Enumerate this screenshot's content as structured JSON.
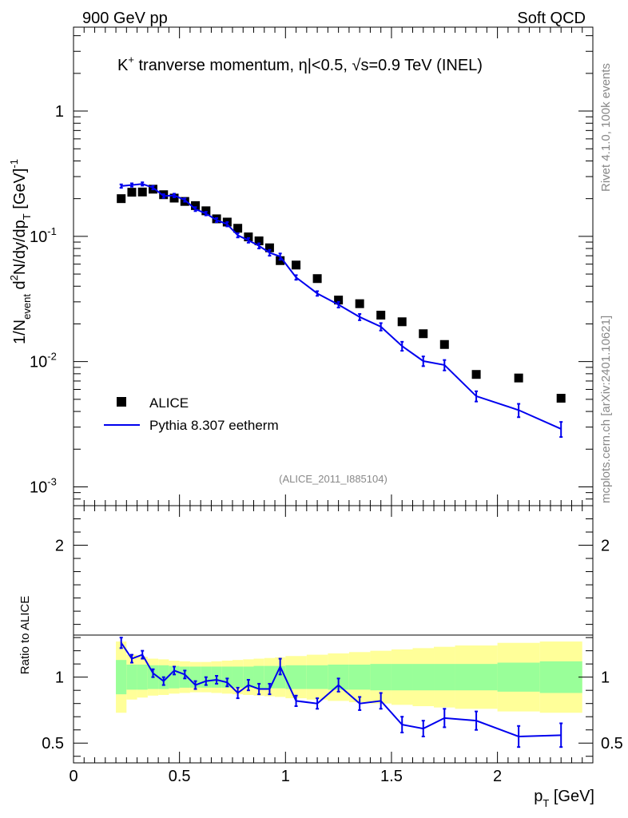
{
  "header": {
    "left": "900 GeV pp",
    "right": "Soft QCD"
  },
  "side_labels": {
    "top": "Rivet 4.1.0,  100k events",
    "bottom": "mcplots.cern.ch [arXiv:2401.10621]"
  },
  "watermark": "(ALICE_2011_I885104)",
  "title_parts": {
    "k": "K",
    "plus": "+",
    "mid": " tranverse momentum, ",
    "eta": "η",
    "abs_cut": "|<0.5, ",
    "sqrt": "√",
    "s_rest": "s=0.9 TeV (INEL)"
  },
  "ylabel_parts": {
    "a": "1/N",
    "event": "event",
    "b": " d",
    "two": "2",
    "c": "N/dy/dp",
    "t": "T",
    "d": " [GeV]",
    "minus_one": "-1"
  },
  "xlabel_parts": {
    "p": "p",
    "t": "T",
    "unit": " [GeV]"
  },
  "ratio_ylabel": "Ratio to ALICE",
  "colors": {
    "mc": "#0000ee",
    "data": "#000000",
    "band_inner": "#99ff99",
    "band_outer": "#ffff99"
  },
  "legend": {
    "data_label": "ALICE",
    "mc_label": "Pythia 8.307 eetherm"
  },
  "chart_data": {
    "type": "scatter",
    "title": "K+ tranverse momentum, |η|<0.5, √s=0.9 TeV (INEL)",
    "xlabel": "pT [GeV]",
    "ylabel": "1/Nevent d2N/dy/dpT [GeV]-1",
    "xlim": [
      0,
      2.45
    ],
    "main_ylim_log10": [
      -3.15,
      0.67
    ],
    "ratio_ylim": [
      0.35,
      2.3
    ],
    "x_tick_labels": [
      "0",
      "0.5",
      "1",
      "1.5",
      "2"
    ],
    "x_tick_values": [
      0,
      0.5,
      1,
      1.5,
      2
    ],
    "main_y_tick_labels": [
      {
        "base": "1",
        "exp": "",
        "log": 0
      },
      {
        "base": "10",
        "exp": "-1",
        "log": -1
      },
      {
        "base": "10",
        "exp": "-2",
        "log": -2
      },
      {
        "base": "10",
        "exp": "-3",
        "log": -3
      }
    ],
    "ratio_y_tick_labels": [
      "0.5",
      "1",
      "2"
    ],
    "ratio_y_tick_values": [
      0.5,
      1,
      2
    ],
    "data": {
      "name": "ALICE",
      "x": [
        0.225,
        0.275,
        0.325,
        0.375,
        0.425,
        0.475,
        0.525,
        0.575,
        0.625,
        0.675,
        0.725,
        0.775,
        0.825,
        0.875,
        0.925,
        0.975,
        1.05,
        1.15,
        1.25,
        1.35,
        1.45,
        1.55,
        1.65,
        1.75,
        1.9,
        2.1,
        2.3
      ],
      "x_lo": [
        0.2,
        0.25,
        0.3,
        0.35,
        0.4,
        0.45,
        0.5,
        0.55,
        0.6,
        0.65,
        0.7,
        0.75,
        0.8,
        0.85,
        0.9,
        0.95,
        1.0,
        1.1,
        1.2,
        1.3,
        1.4,
        1.5,
        1.6,
        1.7,
        1.8,
        2.0,
        2.2
      ],
      "x_hi": [
        0.25,
        0.3,
        0.35,
        0.4,
        0.45,
        0.5,
        0.55,
        0.6,
        0.65,
        0.7,
        0.75,
        0.8,
        0.85,
        0.9,
        0.95,
        1.0,
        1.1,
        1.2,
        1.3,
        1.4,
        1.5,
        1.6,
        1.7,
        1.8,
        2.0,
        2.2,
        2.4
      ],
      "y": [
        0.2,
        0.225,
        0.226,
        0.238,
        0.215,
        0.202,
        0.19,
        0.176,
        0.16,
        0.138,
        0.13,
        0.116,
        0.099,
        0.092,
        0.081,
        0.064,
        0.059,
        0.046,
        0.031,
        0.029,
        0.0235,
        0.0208,
        0.0167,
        0.0137,
        0.0079,
        0.0074,
        0.0051
      ],
      "band_inner": [
        0.13,
        0.095,
        0.095,
        0.09,
        0.09,
        0.085,
        0.08,
        0.08,
        0.08,
        0.08,
        0.08,
        0.08,
        0.08,
        0.085,
        0.085,
        0.085,
        0.09,
        0.09,
        0.095,
        0.095,
        0.1,
        0.1,
        0.1,
        0.1,
        0.1,
        0.11,
        0.12
      ],
      "band_outer": [
        0.27,
        0.17,
        0.155,
        0.14,
        0.135,
        0.125,
        0.12,
        0.115,
        0.115,
        0.12,
        0.125,
        0.13,
        0.135,
        0.14,
        0.145,
        0.15,
        0.16,
        0.17,
        0.18,
        0.19,
        0.2,
        0.21,
        0.22,
        0.23,
        0.24,
        0.26,
        0.27
      ]
    },
    "mc": {
      "name": "Pythia 8.307 eetherm",
      "y": [
        0.252,
        0.257,
        0.262,
        0.245,
        0.21,
        0.212,
        0.195,
        0.165,
        0.152,
        0.135,
        0.125,
        0.102,
        0.093,
        0.084,
        0.074,
        0.069,
        0.047,
        0.035,
        0.0285,
        0.0227,
        0.019,
        0.0133,
        0.0101,
        0.0094,
        0.0053,
        0.0041,
        0.0029
      ],
      "y_err": [
        0.008,
        0.008,
        0.008,
        0.008,
        0.007,
        0.007,
        0.006,
        0.006,
        0.005,
        0.005,
        0.005,
        0.004,
        0.004,
        0.004,
        0.004,
        0.004,
        0.002,
        0.0015,
        0.0015,
        0.0013,
        0.0013,
        0.0011,
        0.0009,
        0.0009,
        0.0005,
        0.0005,
        0.0004
      ],
      "ratio": [
        1.26,
        1.14,
        1.17,
        1.03,
        0.97,
        1.05,
        1.02,
        0.94,
        0.97,
        0.98,
        0.96,
        0.88,
        0.94,
        0.91,
        0.91,
        1.08,
        0.82,
        0.8,
        0.94,
        0.8,
        0.82,
        0.64,
        0.61,
        0.69,
        0.67,
        0.55,
        0.56
      ],
      "ratio_err": [
        0.04,
        0.03,
        0.03,
        0.03,
        0.03,
        0.03,
        0.03,
        0.03,
        0.03,
        0.03,
        0.03,
        0.04,
        0.04,
        0.04,
        0.04,
        0.06,
        0.04,
        0.04,
        0.05,
        0.05,
        0.06,
        0.06,
        0.06,
        0.07,
        0.07,
        0.08,
        0.09
      ]
    }
  }
}
